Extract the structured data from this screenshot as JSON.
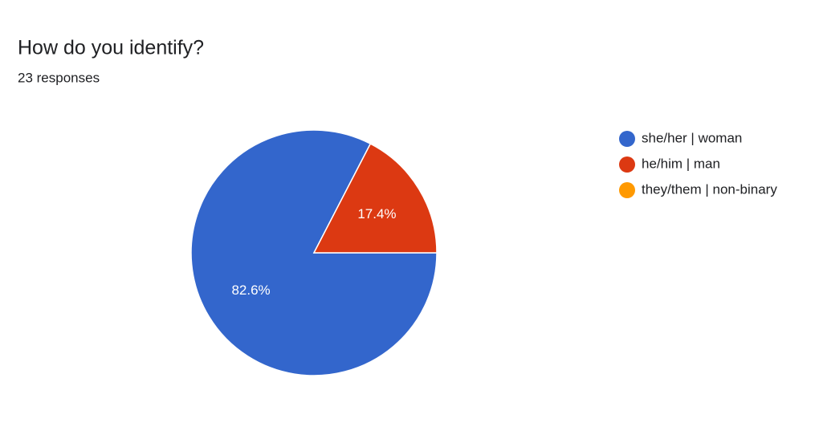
{
  "chart_data": {
    "type": "pie",
    "title": "How do you identify?",
    "subtitle": "23 responses",
    "categories": [
      "she/her | woman",
      "he/him | man",
      "they/them | non-binary"
    ],
    "values": [
      82.6,
      17.4,
      0
    ],
    "value_labels": [
      "82.6%",
      "17.4%",
      null
    ],
    "colors": [
      "#3366cc",
      "#dc3912",
      "#ff9900"
    ],
    "legend": "right"
  }
}
